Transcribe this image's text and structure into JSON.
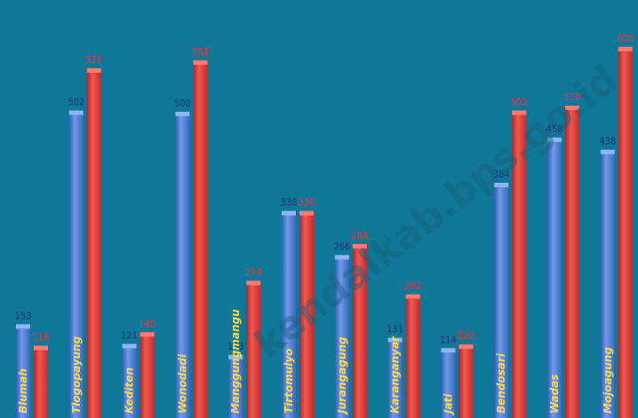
{
  "chart_data": {
    "type": "bar",
    "title": "",
    "xlabel": "",
    "ylabel": "",
    "ylim": [
      0,
      620
    ],
    "grid": false,
    "categories": [
      "Blumah",
      "Tlogopayung",
      "Kediten",
      "Wonodadi",
      "Manggungmangu",
      "Tirtomulyo",
      "Jurangagung",
      "Karanganyar",
      "Jati",
      "Bendosari",
      "Wadas",
      "Mojoagung"
    ],
    "series": [
      {
        "values": [
          153,
          502,
          121,
          500,
          103,
          338,
          266,
          131,
          114,
          384,
          458,
          438
        ]
      },
      {
        "values": [
          118,
          571,
          140,
          584,
          224,
          338,
          284,
          202,
          120,
          502,
          510,
          606
        ]
      }
    ],
    "colors": [
      "#4472c4",
      "#e03c3c"
    ],
    "label_colors": [
      "#1c2e7a",
      "#e8393b"
    ]
  },
  "watermark": "kendalkab.bps.go.id"
}
